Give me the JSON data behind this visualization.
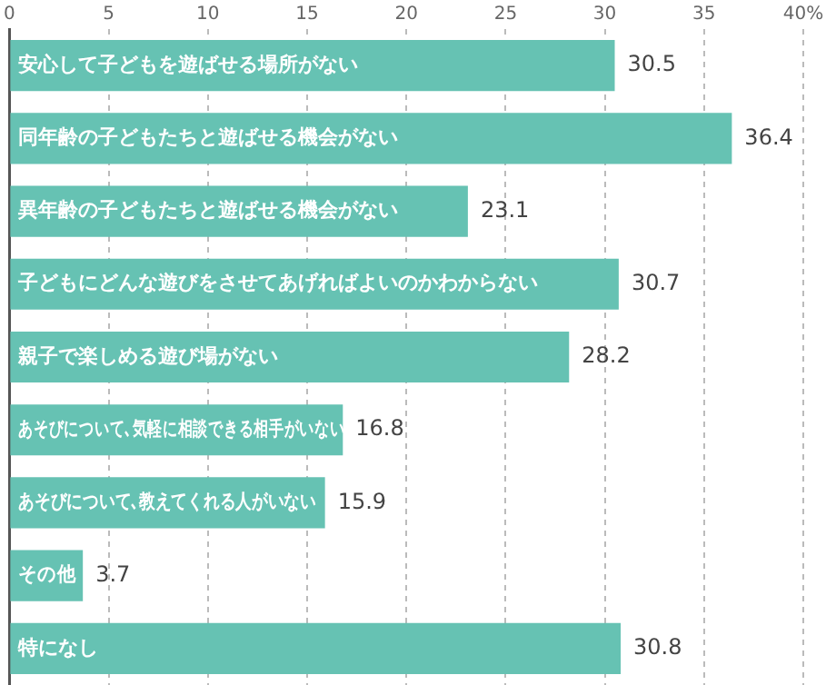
{
  "chart_data": {
    "type": "bar",
    "orientation": "horizontal",
    "categories": [
      "安心して子どもを遊ばせる場所がない",
      "同年齢の子どもたちと遊ばせる機会がない",
      "異年齢の子どもたちと遊ばせる機会がない",
      "子どもにどんな遊びをさせてあげればよいのかわからない",
      "親子で楽しめる遊び場がない",
      "あそびについて､気軽に相談できる相手がいない",
      "あそびについて､教えてくれる人がいない",
      "その他",
      "特になし"
    ],
    "values": [
      30.5,
      36.4,
      23.1,
      30.7,
      28.2,
      16.8,
      15.9,
      3.7,
      30.8
    ],
    "color": "#66c2b3",
    "xlim": [
      0,
      40
    ],
    "xticks": [
      0,
      5,
      10,
      15,
      20,
      25,
      30,
      35,
      {
        "value": 40,
        "label": "40%"
      }
    ],
    "grid": "x",
    "data_labels": true,
    "legend": false
  }
}
